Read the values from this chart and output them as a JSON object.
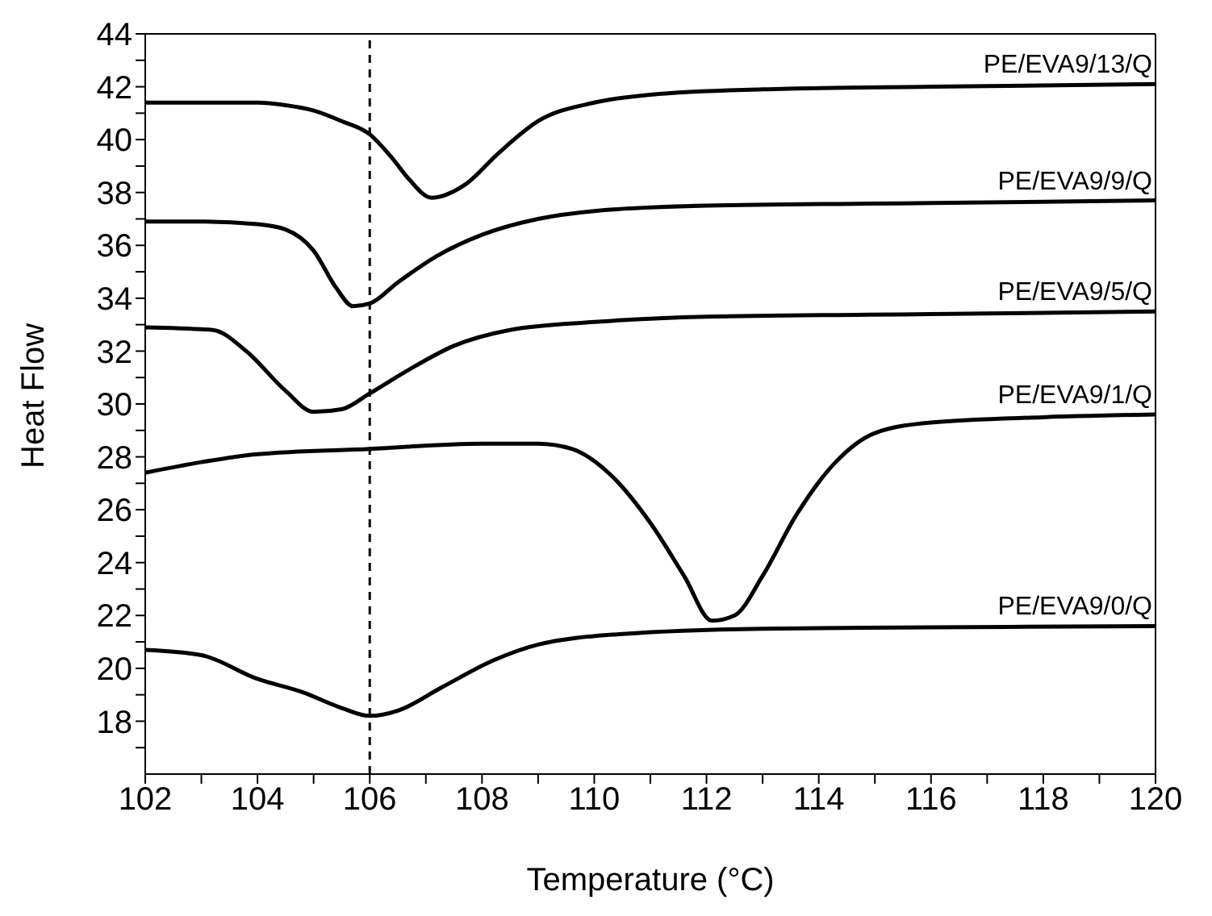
{
  "chart_data": {
    "type": "line",
    "xlabel": "Temperature (°C)",
    "ylabel": "Heat Flow",
    "xlim": [
      102,
      120
    ],
    "ylim": [
      16,
      44
    ],
    "xticks": [
      102,
      {
        "value": 103,
        "label": null
      },
      104,
      {
        "value": 105,
        "label": null
      },
      106,
      {
        "value": 107,
        "label": null
      },
      108,
      {
        "value": 109,
        "label": null
      },
      110,
      {
        "value": 111,
        "label": null
      },
      112,
      {
        "value": 113,
        "label": null
      },
      114,
      {
        "value": 115,
        "label": null
      },
      116,
      {
        "value": 117,
        "label": null
      },
      118,
      {
        "value": 119,
        "label": null
      },
      120
    ],
    "yticks": [
      {
        "value": 17,
        "label": null
      },
      18,
      {
        "value": 19,
        "label": null
      },
      20,
      {
        "value": 21,
        "label": null
      },
      22,
      {
        "value": 23,
        "label": null
      },
      24,
      {
        "value": 25,
        "label": null
      },
      26,
      {
        "value": 27,
        "label": null
      },
      28,
      {
        "value": 29,
        "label": null
      },
      30,
      {
        "value": 31,
        "label": null
      },
      32,
      {
        "value": 33,
        "label": null
      },
      34,
      {
        "value": 35,
        "label": null
      },
      36,
      {
        "value": 37,
        "label": null
      },
      38,
      {
        "value": 39,
        "label": null
      },
      40,
      {
        "value": 41,
        "label": null
      },
      42,
      {
        "value": 43,
        "label": null
      },
      44
    ],
    "grid": false,
    "legend": false,
    "marker": "none",
    "line_style": "solid",
    "ref_lines": [
      {
        "axis": "x",
        "value": 106,
        "line_style": "dashed",
        "color": "#000000"
      }
    ],
    "series": [
      {
        "name": "PE/EVA9/13/Q",
        "color": "#000000",
        "x": [
          102,
          103,
          104,
          104.5,
          105,
          105.5,
          106,
          106.4,
          106.7,
          107.1,
          107.7,
          108.3,
          109,
          110,
          111,
          113,
          116,
          120
        ],
        "values": [
          41.4,
          41.4,
          41.4,
          41.3,
          41.1,
          40.7,
          40.2,
          39.3,
          38.5,
          37.8,
          38.3,
          39.5,
          40.7,
          41.4,
          41.7,
          41.9,
          42.0,
          42.1
        ]
      },
      {
        "name": "PE/EVA9/9/Q",
        "color": "#000000",
        "x": [
          102,
          103,
          104,
          104.5,
          105,
          105.4,
          105.7,
          106,
          106.5,
          107.2,
          108,
          109,
          110,
          112,
          116,
          120
        ],
        "values": [
          36.9,
          36.9,
          36.8,
          36.6,
          35.8,
          34.4,
          33.7,
          33.8,
          34.6,
          35.6,
          36.4,
          37.0,
          37.3,
          37.5,
          37.6,
          37.7
        ]
      },
      {
        "name": "PE/EVA9/5/Q",
        "color": "#000000",
        "x": [
          102,
          103.2,
          103.8,
          104.5,
          105,
          105.5,
          106,
          106.7,
          107.5,
          108.5,
          110,
          112,
          116,
          120
        ],
        "values": [
          32.9,
          32.8,
          32.0,
          30.5,
          29.7,
          29.8,
          30.4,
          31.3,
          32.2,
          32.8,
          33.1,
          33.3,
          33.4,
          33.5
        ]
      },
      {
        "name": "PE/EVA9/1/Q",
        "color": "#000000",
        "x": [
          102,
          103,
          104,
          106,
          108,
          109,
          109.6,
          110.3,
          111,
          111.6,
          112.1,
          112.5,
          113,
          113.6,
          114.3,
          115,
          116,
          118,
          120
        ],
        "values": [
          27.4,
          27.8,
          28.1,
          28.3,
          28.5,
          28.5,
          28.3,
          27.3,
          25.5,
          23.5,
          21.8,
          22.0,
          23.5,
          25.8,
          27.8,
          28.9,
          29.3,
          29.5,
          29.6
        ]
      },
      {
        "name": "PE/EVA9/0/Q",
        "color": "#000000",
        "x": [
          102,
          103,
          104,
          104.8,
          105.5,
          106,
          106.5,
          107.3,
          108.2,
          109,
          110.5,
          113,
          116,
          120
        ],
        "values": [
          20.7,
          20.5,
          19.6,
          19.1,
          18.5,
          18.2,
          18.4,
          19.3,
          20.3,
          20.9,
          21.3,
          21.5,
          21.55,
          21.6
        ]
      }
    ]
  }
}
